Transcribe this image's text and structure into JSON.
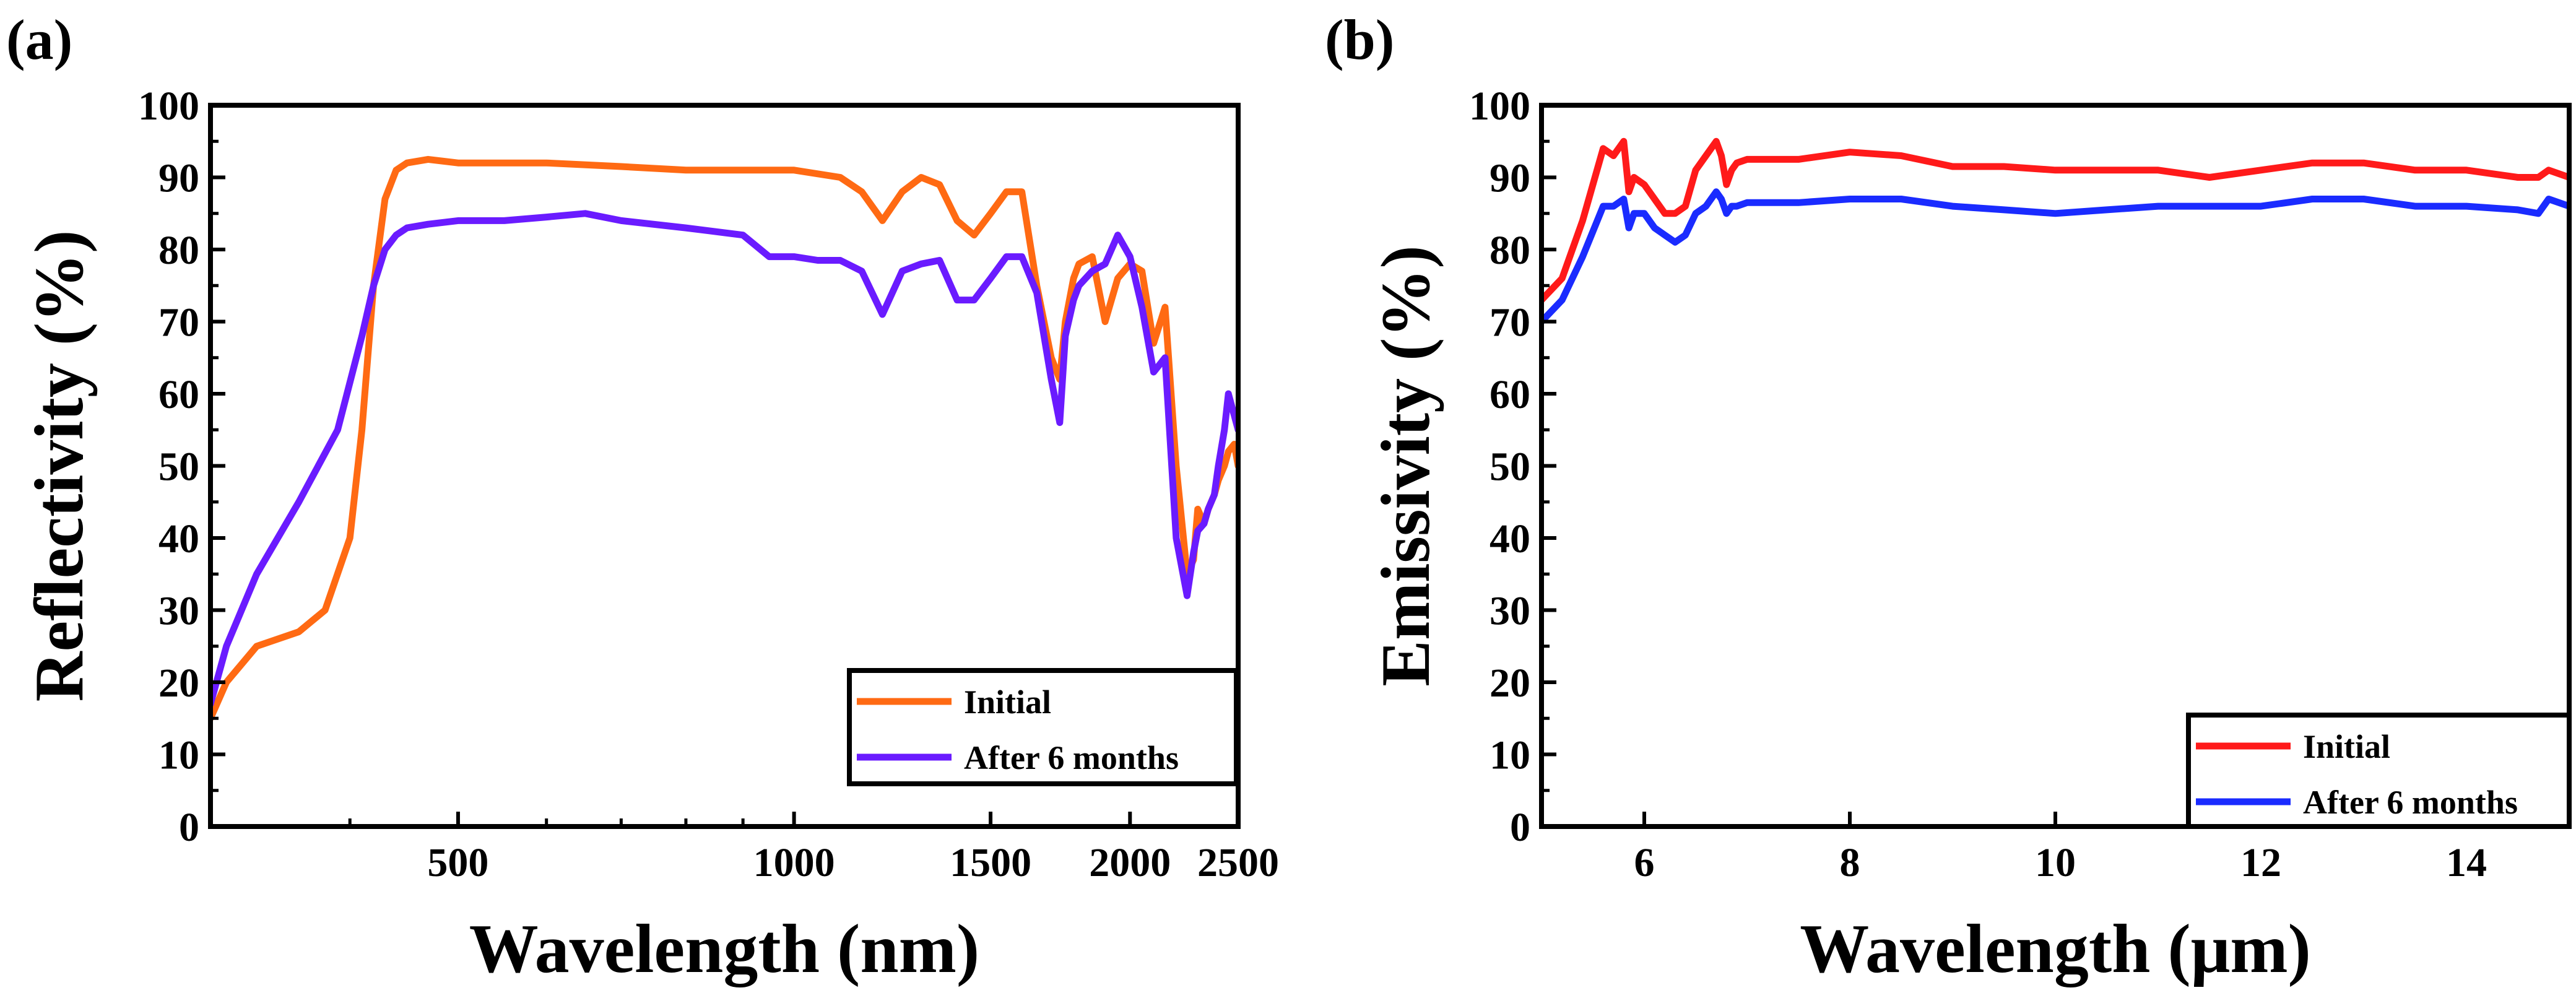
{
  "colors": {
    "initial_a": "#ff6a13",
    "after_a": "#6a1bff",
    "initial_b": "#ff1a1a",
    "after_b": "#1a2bff"
  },
  "chart_data": [
    {
      "panel_label": "(a)",
      "type": "line",
      "xlabel": "Wavelength (nm)",
      "ylabel": "Reflectivity (%)",
      "xscale": "log",
      "xlim": [
        300,
        2500
      ],
      "ylim": [
        0,
        100
      ],
      "xticks": [
        500,
        1000,
        1500,
        2000,
        2500
      ],
      "xtick_labels": [
        "500",
        "1000",
        "1500",
        "2000",
        "2500"
      ],
      "yticks": [
        0,
        10,
        20,
        30,
        40,
        50,
        60,
        70,
        80,
        90,
        100
      ],
      "ytick_labels": [
        "0",
        "10",
        "20",
        "30",
        "40",
        "50",
        "60",
        "70",
        "80",
        "90",
        "100"
      ],
      "legend_position": "bottom-right",
      "series": [
        {
          "name": "Initial",
          "color_key": "initial_a",
          "x": [
            300,
            310,
            330,
            360,
            380,
            400,
            410,
            420,
            430,
            440,
            450,
            470,
            500,
            550,
            600,
            700,
            800,
            900,
            1000,
            1100,
            1150,
            1200,
            1250,
            1300,
            1350,
            1400,
            1450,
            1500,
            1550,
            1600,
            1650,
            1700,
            1730,
            1750,
            1780,
            1800,
            1850,
            1900,
            1950,
            2000,
            2050,
            2100,
            2150,
            2200,
            2250,
            2280,
            2300,
            2330,
            2350,
            2380,
            2400,
            2430,
            2450,
            2480,
            2500
          ],
          "y": [
            15,
            20,
            25,
            27,
            30,
            40,
            55,
            75,
            87,
            91,
            92,
            92.5,
            92,
            92,
            92,
            91.5,
            91,
            91,
            91,
            90,
            88,
            84,
            88,
            90,
            89,
            84,
            82,
            85,
            88,
            88,
            75,
            65,
            62,
            70,
            76,
            78,
            79,
            70,
            76,
            78,
            77,
            67,
            72,
            50,
            35,
            37,
            44,
            42,
            44,
            46,
            48,
            50,
            52,
            53,
            50
          ]
        },
        {
          "name": "After 6 months",
          "color_key": "after_a",
          "x": [
            300,
            310,
            330,
            360,
            390,
            410,
            420,
            430,
            440,
            450,
            470,
            500,
            550,
            600,
            650,
            700,
            800,
            900,
            950,
            1000,
            1050,
            1100,
            1150,
            1200,
            1250,
            1300,
            1350,
            1400,
            1450,
            1500,
            1550,
            1600,
            1650,
            1700,
            1730,
            1750,
            1780,
            1800,
            1850,
            1900,
            1950,
            2000,
            2050,
            2100,
            2150,
            2200,
            2250,
            2280,
            2300,
            2330,
            2350,
            2380,
            2400,
            2430,
            2450,
            2480,
            2500
          ],
          "y": [
            17,
            25,
            35,
            45,
            55,
            68,
            75,
            80,
            82,
            83,
            83.5,
            84,
            84,
            84.5,
            85,
            84,
            83,
            82,
            79,
            79,
            78.5,
            78.5,
            77,
            71,
            77,
            78,
            78.5,
            73,
            73,
            76,
            79,
            79,
            74,
            62,
            56,
            68,
            73,
            75,
            77,
            78,
            82,
            79,
            72,
            63,
            65,
            40,
            32,
            38,
            41,
            42,
            44,
            46,
            50,
            55,
            60,
            57,
            55
          ]
        }
      ]
    },
    {
      "panel_label": "(b)",
      "type": "line",
      "xlabel": "Wavelength (μm)",
      "ylabel": "Emissivity (%)",
      "xscale": "linear",
      "xlim": [
        5,
        15
      ],
      "ylim": [
        0,
        100
      ],
      "xticks": [
        6,
        8,
        10,
        12,
        14
      ],
      "xtick_labels": [
        "6",
        "8",
        "10",
        "12",
        "14"
      ],
      "yticks": [
        0,
        10,
        20,
        30,
        40,
        50,
        60,
        70,
        80,
        90,
        100
      ],
      "ytick_labels": [
        "0",
        "10",
        "20",
        "30",
        "40",
        "50",
        "60",
        "70",
        "80",
        "90",
        "100"
      ],
      "legend_position": "bottom-right",
      "series": [
        {
          "name": "Initial",
          "color_key": "initial_b",
          "x": [
            5.0,
            5.2,
            5.4,
            5.6,
            5.7,
            5.8,
            5.85,
            5.9,
            6.0,
            6.1,
            6.2,
            6.3,
            6.4,
            6.5,
            6.6,
            6.7,
            6.75,
            6.8,
            6.85,
            6.9,
            7.0,
            7.5,
            8.0,
            8.5,
            9.0,
            9.5,
            10.0,
            10.5,
            11.0,
            11.5,
            12.0,
            12.5,
            13.0,
            13.5,
            14.0,
            14.5,
            14.7,
            14.8,
            15.0
          ],
          "y": [
            73,
            76,
            84,
            94,
            93,
            95,
            88,
            90,
            89,
            87,
            85,
            85,
            86,
            91,
            93,
            95,
            93,
            89,
            91,
            92,
            92.5,
            92.5,
            93.5,
            93,
            91.5,
            91.5,
            91,
            91,
            91,
            90,
            91,
            92,
            92,
            91,
            91,
            90,
            90,
            91,
            90
          ]
        },
        {
          "name": "After 6 months",
          "color_key": "after_b",
          "x": [
            5.0,
            5.2,
            5.4,
            5.6,
            5.7,
            5.8,
            5.85,
            5.9,
            6.0,
            6.1,
            6.2,
            6.3,
            6.4,
            6.5,
            6.6,
            6.7,
            6.75,
            6.8,
            6.85,
            6.9,
            7.0,
            7.5,
            8.0,
            8.5,
            9.0,
            9.5,
            10.0,
            10.5,
            11.0,
            11.5,
            12.0,
            12.5,
            13.0,
            13.5,
            14.0,
            14.5,
            14.7,
            14.8,
            15.0
          ],
          "y": [
            70,
            73,
            79,
            86,
            86,
            87,
            83,
            85,
            85,
            83,
            82,
            81,
            82,
            85,
            86,
            88,
            87,
            85,
            86,
            86,
            86.5,
            86.5,
            87,
            87,
            86,
            85.5,
            85,
            85.5,
            86,
            86,
            86,
            87,
            87,
            86,
            86,
            85.5,
            85,
            87,
            86
          ]
        }
      ]
    }
  ]
}
